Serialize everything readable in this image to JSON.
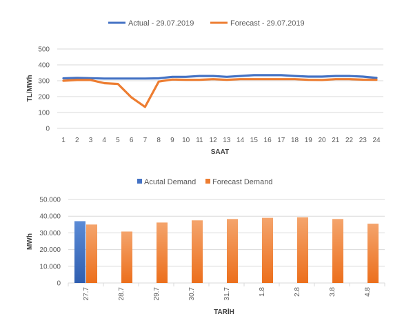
{
  "colors": {
    "actual": "#4472C4",
    "forecast": "#ED7D31",
    "grid": "#D9D9D9",
    "text": "#595959"
  },
  "chart_data": [
    {
      "type": "line",
      "title": "",
      "xlabel": "SAAT",
      "ylabel": "TL/MWh",
      "x": [
        "1",
        "2",
        "3",
        "4",
        "5",
        "6",
        "7",
        "8",
        "9",
        "10",
        "11",
        "12",
        "13",
        "14",
        "15",
        "16",
        "17",
        "18",
        "19",
        "20",
        "21",
        "22",
        "23",
        "24"
      ],
      "ylim": [
        0,
        500
      ],
      "yticks": [
        "0",
        "100",
        "200",
        "300",
        "400",
        "500"
      ],
      "grid": true,
      "legend": "top",
      "series": [
        {
          "name": "Actual - 29.07.2019",
          "color": "#4472C4",
          "values": [
            315,
            318,
            316,
            314,
            314,
            314,
            314,
            315,
            325,
            325,
            330,
            330,
            325,
            330,
            335,
            335,
            335,
            330,
            326,
            326,
            330,
            330,
            326,
            318
          ]
        },
        {
          "name": "Forecast - 29.07.2019",
          "color": "#ED7D31",
          "values": [
            300,
            305,
            305,
            285,
            280,
            195,
            135,
            295,
            308,
            306,
            306,
            310,
            306,
            310,
            310,
            310,
            310,
            310,
            306,
            305,
            310,
            310,
            307,
            306
          ]
        }
      ]
    },
    {
      "type": "bar",
      "title": "",
      "xlabel": "TARİH",
      "ylabel": "MWh",
      "categories": [
        "27.7",
        "28.7",
        "29.7",
        "30.7",
        "31.7",
        "1.8",
        "2.8",
        "3.8",
        "4.8"
      ],
      "ylim": [
        0,
        50000
      ],
      "yticks": [
        "0",
        "10.000",
        "20.000",
        "30.000",
        "40.000",
        "50.000"
      ],
      "grid": true,
      "legend": "top",
      "series": [
        {
          "name": "Acutal Demand",
          "color": "#4472C4",
          "values": [
            37000,
            null,
            null,
            null,
            null,
            null,
            null,
            null,
            null
          ]
        },
        {
          "name": "Forecast Demand",
          "color": "#ED7D31",
          "values": [
            35000,
            30800,
            36200,
            37500,
            38300,
            39000,
            39300,
            38300,
            35500
          ]
        }
      ]
    }
  ]
}
